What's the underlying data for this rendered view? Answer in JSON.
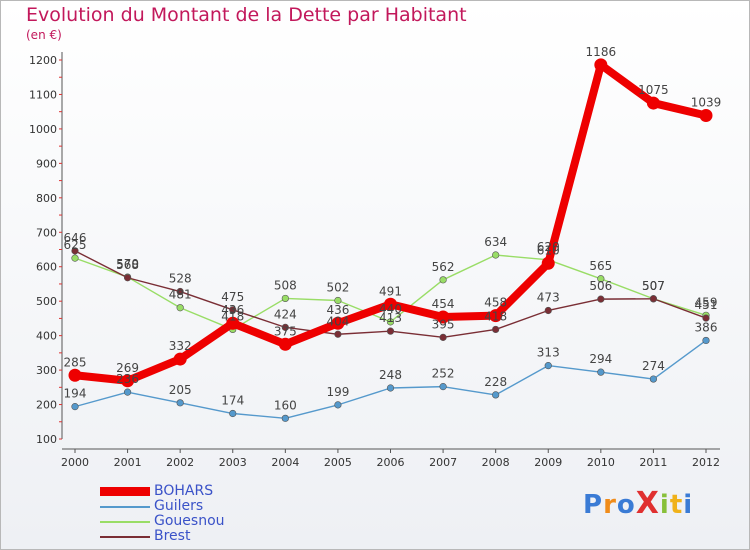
{
  "chart_data": {
    "type": "line",
    "title": "Evolution du Montant de la Dette par Habitant",
    "subtitle": "(en €)",
    "xlabel": "",
    "ylabel": "",
    "x": [
      "2000",
      "2001",
      "2002",
      "2003",
      "2004",
      "2005",
      "2006",
      "2007",
      "2008",
      "2009",
      "2010",
      "2011",
      "2012"
    ],
    "ylim": [
      100,
      1200
    ],
    "yticks": [
      100,
      200,
      300,
      400,
      500,
      600,
      700,
      800,
      900,
      1000,
      1100,
      1200
    ],
    "grid": false,
    "legend_position": "bottom-left",
    "series": [
      {
        "name": "Guilers",
        "color": "#5599cc",
        "values": [
          194,
          236,
          205,
          174,
          160,
          199,
          248,
          252,
          228,
          313,
          294,
          274,
          386
        ]
      },
      {
        "name": "Gouesnou",
        "color": "#99dd66",
        "values": [
          625,
          570,
          481,
          418,
          508,
          502,
          440,
          562,
          634,
          620,
          565,
          507,
          459
        ]
      },
      {
        "name": "Brest",
        "color": "#7a2e35",
        "values": [
          646,
          568,
          528,
          475,
          424,
          404,
          413,
          395,
          418,
          473,
          506,
          507,
          451
        ]
      },
      {
        "name": "BOHARS",
        "color": "#ee0000",
        "values": [
          285,
          269,
          332,
          436,
          375,
          436,
          491,
          454,
          458,
          610,
          1186,
          1075,
          1039
        ]
      }
    ],
    "legend_order": [
      "BOHARS",
      "Guilers",
      "Gouesnou",
      "Brest"
    ]
  },
  "logo": {
    "text": "ProXiti"
  }
}
